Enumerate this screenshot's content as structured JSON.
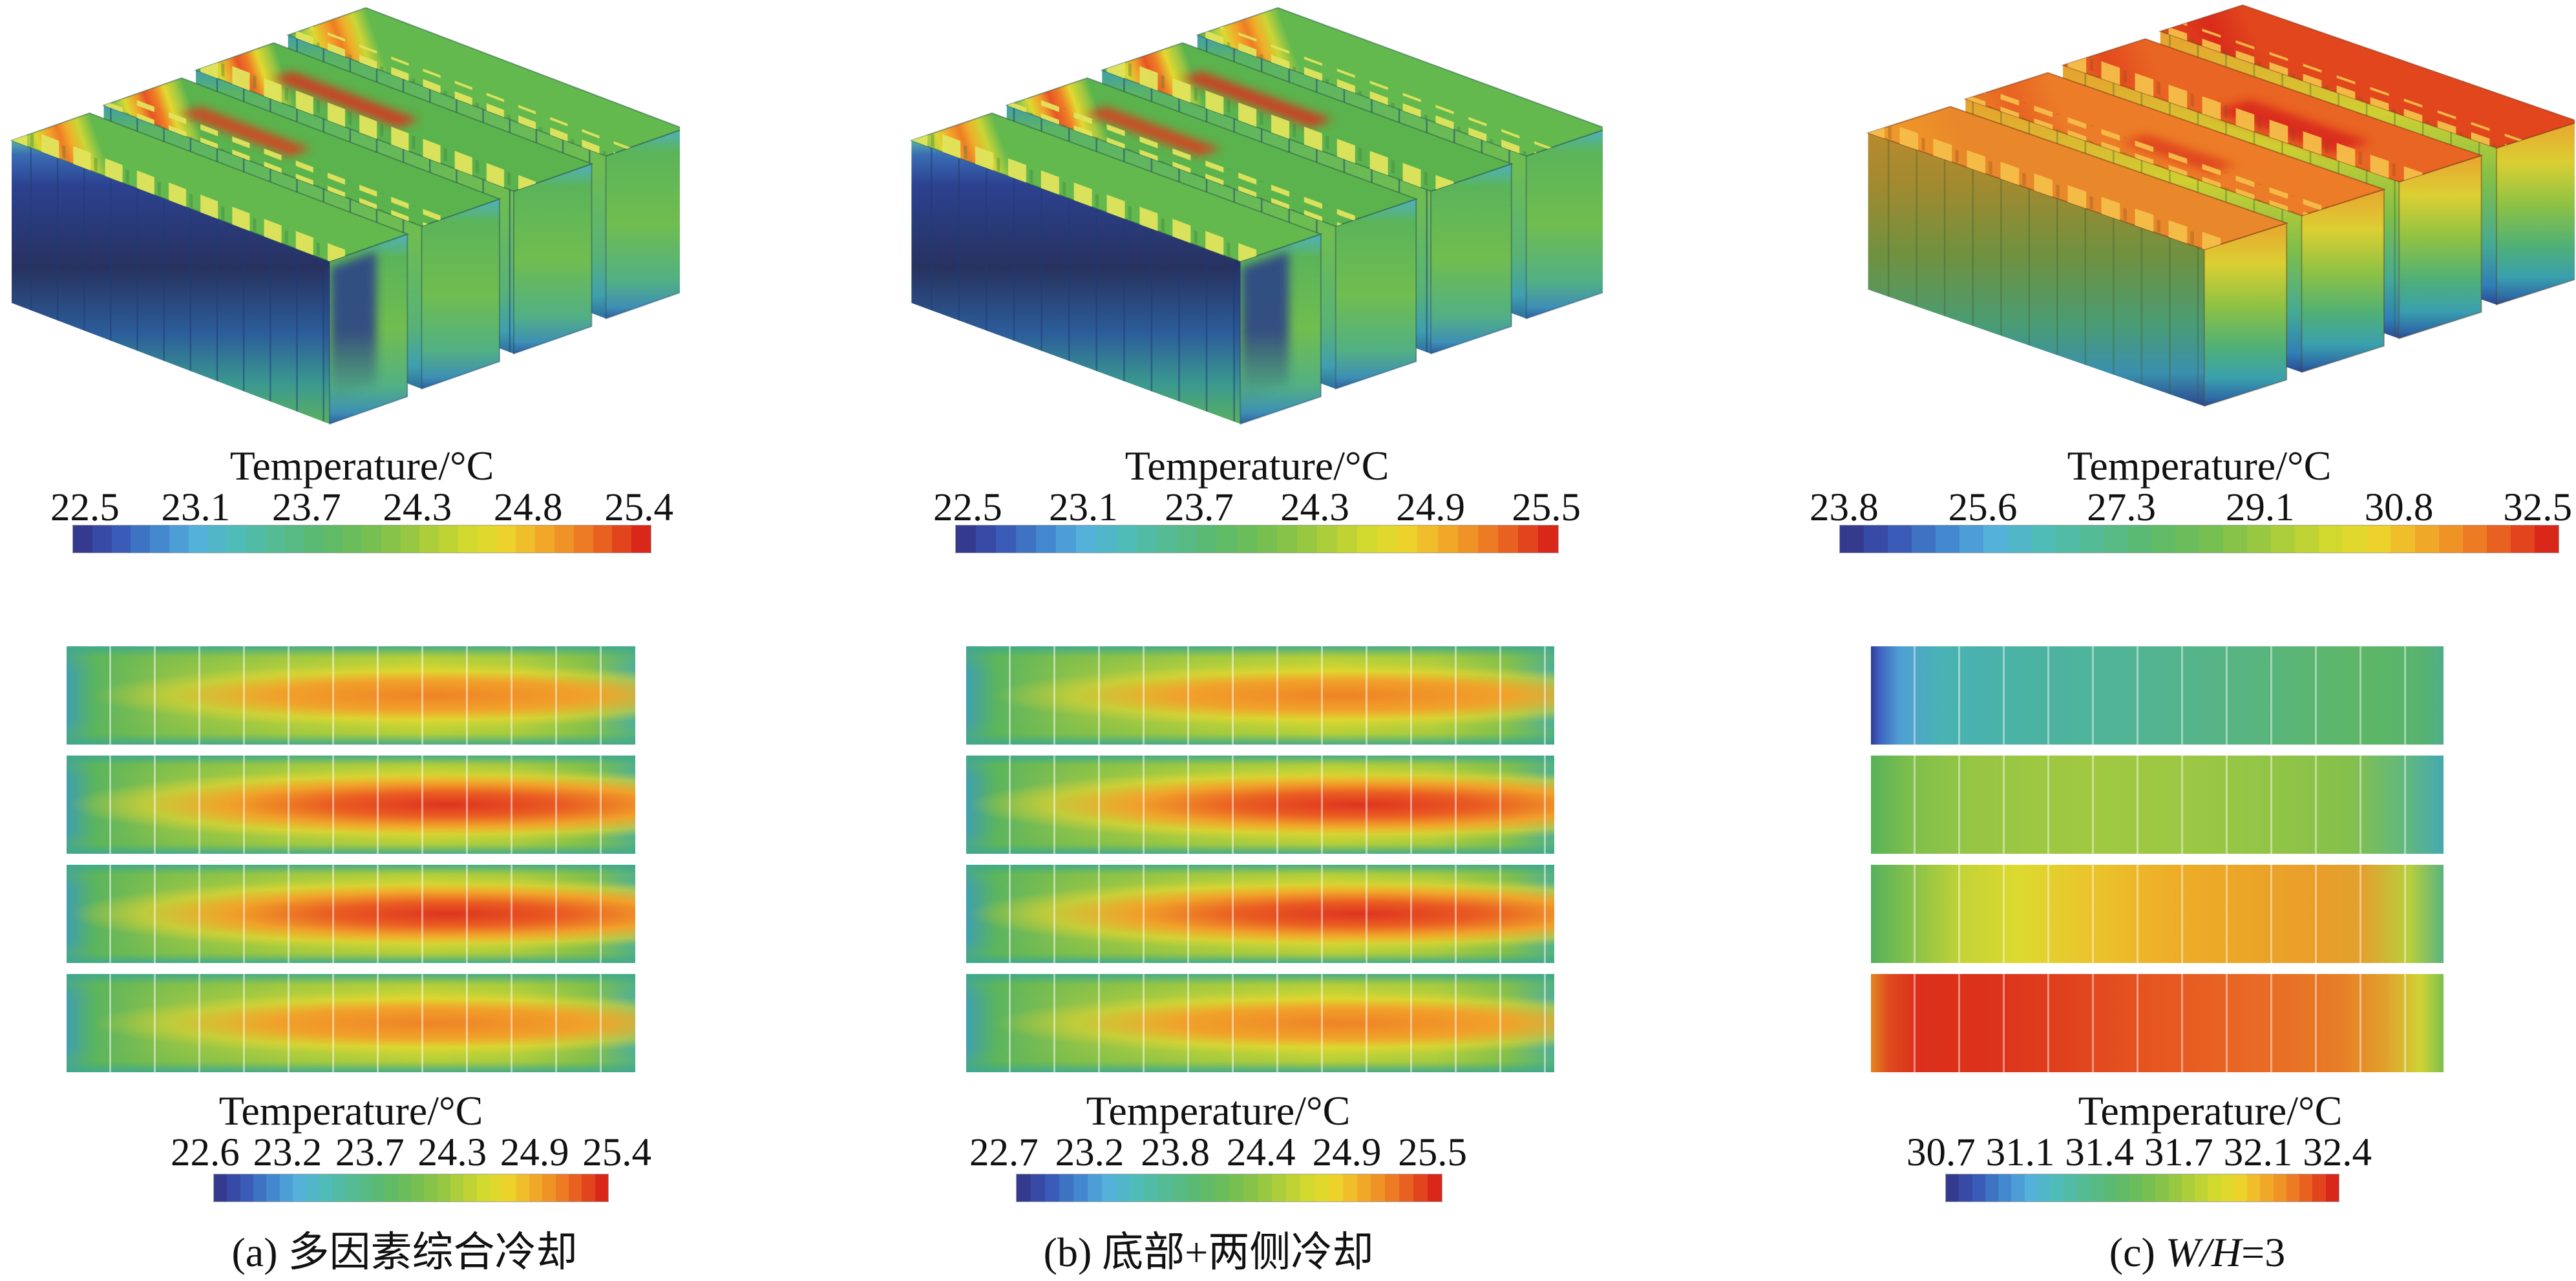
{
  "columns": [
    {
      "id": "a",
      "top_colorbar": {
        "title": "Temperature/°C",
        "ticks": [
          "22.5",
          "23.1",
          "23.7",
          "24.3",
          "24.8",
          "25.4"
        ]
      },
      "bottom_colorbar": {
        "title": "Temperature/°C",
        "ticks": [
          "22.6",
          "23.2",
          "23.7",
          "24.3",
          "24.9",
          "25.4"
        ]
      },
      "caption": {
        "pre": "(a) 多因素综合冷却",
        "math": "",
        "post": ""
      }
    },
    {
      "id": "b",
      "top_colorbar": {
        "title": "Temperature/°C",
        "ticks": [
          "22.5",
          "23.1",
          "23.7",
          "24.3",
          "24.9",
          "25.5"
        ]
      },
      "bottom_colorbar": {
        "title": "Temperature/°C",
        "ticks": [
          "22.7",
          "23.2",
          "23.8",
          "24.4",
          "24.9",
          "25.5"
        ]
      },
      "caption": {
        "pre": "(b) 底部+两侧冷却",
        "math": "",
        "post": ""
      }
    },
    {
      "id": "c",
      "top_colorbar": {
        "title": "Temperature/°C",
        "ticks": [
          "23.8",
          "25.6",
          "27.3",
          "29.1",
          "30.8",
          "32.5"
        ]
      },
      "bottom_colorbar": {
        "title": "Temperature/°C",
        "ticks": [
          "30.7",
          "31.1",
          "31.4",
          "31.7",
          "32.1",
          "32.4"
        ]
      },
      "caption": {
        "pre": "(c) ",
        "math": "W/H",
        "post": "=3"
      }
    }
  ],
  "colormap": [
    [
      0.0,
      "#343b8f"
    ],
    [
      0.06,
      "#3a55b5"
    ],
    [
      0.13,
      "#4183cc"
    ],
    [
      0.2,
      "#55b0dc"
    ],
    [
      0.27,
      "#4fbcba"
    ],
    [
      0.35,
      "#54bb92"
    ],
    [
      0.43,
      "#5bb96b"
    ],
    [
      0.52,
      "#77bf4f"
    ],
    [
      0.6,
      "#9fca3e"
    ],
    [
      0.68,
      "#cdd930"
    ],
    [
      0.75,
      "#ecd72c"
    ],
    [
      0.81,
      "#f2b32a"
    ],
    [
      0.87,
      "#f08e26"
    ],
    [
      0.92,
      "#ea6a22"
    ],
    [
      0.96,
      "#e4481e"
    ],
    [
      1.0,
      "#d9281a"
    ]
  ],
  "colorbar_segments": 30,
  "chart_data": [
    {
      "type": "heatmap",
      "subfigure": "(a) 多因素综合冷却",
      "view": "3D battery-module surface temperature (4 rows of prismatic cells)",
      "title": "Temperature/°C",
      "colorbar_ticks": [
        22.5,
        23.1,
        23.7,
        24.3,
        24.8,
        25.4
      ],
      "range": [
        22.5,
        25.4
      ],
      "pattern": "row tops show hot bands; middle two rows reach ~25.4 (red) toward the rear, outer rows ~24.8 (orange); outer left side face coolest ~22.5 (dark blue); end faces green"
    },
    {
      "type": "heatmap",
      "subfigure": "(a) 多因素综合冷却",
      "view": "2D mid-plane, 4 horizontal cell rows, ~13 cells per row",
      "title": "Temperature/°C",
      "colorbar_ticks": [
        22.6,
        23.2,
        23.7,
        24.3,
        24.9,
        25.4
      ],
      "range": [
        22.6,
        25.4
      ],
      "rows": 4,
      "pattern": "each row: cool teal/green edges, hot core right of center; rows 2-3 reach ~25.4 (red), rows 1 and 4 ~24.9 (orange); left inlet edge coolest"
    },
    {
      "type": "heatmap",
      "subfigure": "(b) 底部+两侧冷却",
      "view": "3D battery-module surface temperature (4 rows of prismatic cells)",
      "title": "Temperature/°C",
      "colorbar_ticks": [
        22.5,
        23.1,
        23.7,
        24.3,
        24.9,
        25.5
      ],
      "range": [
        22.5,
        25.5
      ],
      "pattern": "same layout as (a); middle row tops reach ~25.5 (red), outer side face coolest ~22.5 (dark blue)"
    },
    {
      "type": "heatmap",
      "subfigure": "(b) 底部+两侧冷却",
      "view": "2D mid-plane, 4 horizontal cell rows",
      "title": "Temperature/°C",
      "colorbar_ticks": [
        22.7,
        23.2,
        23.8,
        24.4,
        24.9,
        25.5
      ],
      "range": [
        22.7,
        25.5
      ],
      "rows": 4,
      "pattern": "rows 2-3 hot cores extend further right reaching ~25.5 (red); rows 1 and 4 milder (~24.9 orange)"
    },
    {
      "type": "heatmap",
      "subfigure": "(c) W/H=3",
      "view": "3D battery-module surface temperature (4 rows of prismatic cells)",
      "title": "Temperature/°C",
      "colorbar_ticks": [
        23.8,
        25.6,
        27.3,
        29.1,
        30.8,
        32.5
      ],
      "range": [
        23.8,
        32.5
      ],
      "pattern": "tops orange to deep red, hottest rear row ~32.5; side/end faces grade vertically orange→yellow→green→teal→blue (~23.8 at bottom)"
    },
    {
      "type": "heatmap",
      "subfigure": "(c) W/H=3",
      "view": "2D mid-plane, 4 horizontal cell rows",
      "title": "Temperature/°C",
      "colorbar_ticks": [
        30.7,
        31.1,
        31.4,
        31.7,
        32.1,
        32.4
      ],
      "range": [
        30.7,
        32.4
      ],
      "rows": 4,
      "pattern": "near-uniform rows: row1 teal-green ~30.7-31.1 (dark blue sliver far left), row2 green ~31.4, row3 yellow-orange ~31.7-32.1, row4 orange-red ~32.1-32.4 fading to green at right edge"
    }
  ]
}
